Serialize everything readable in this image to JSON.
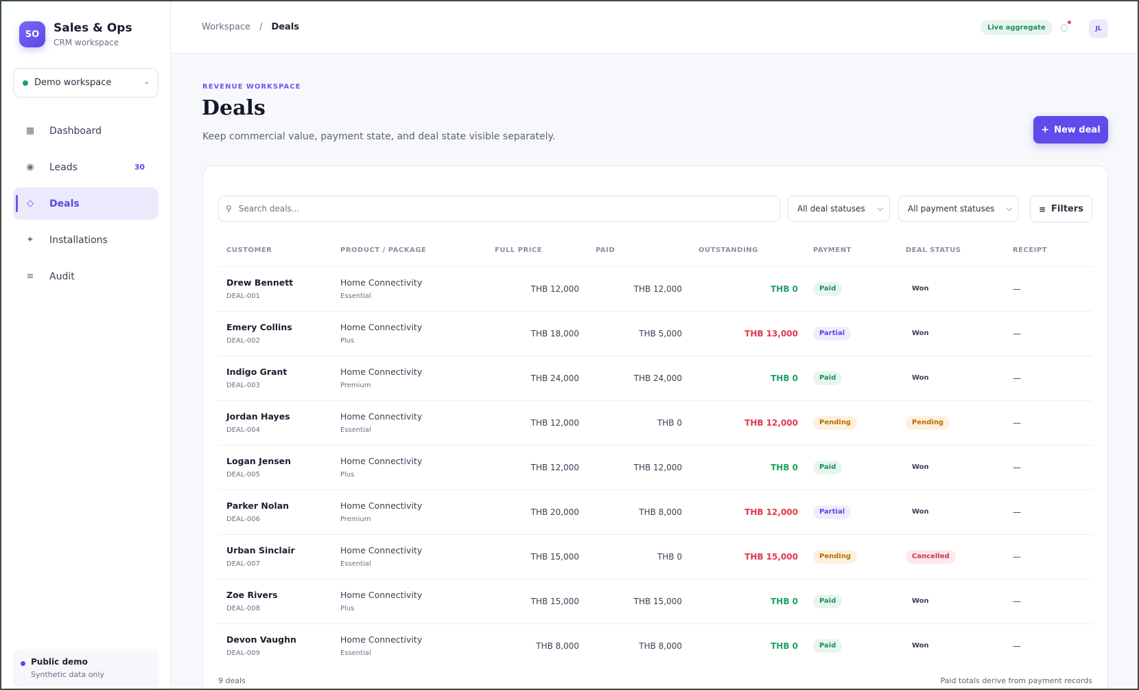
{
  "brand": {
    "initials": "SO",
    "name": "Sales & Ops",
    "subtitle": "CRM workspace"
  },
  "workspace_select": {
    "value": "Demo workspace"
  },
  "nav": [
    {
      "label": "Dashboard",
      "icon": "grid-icon",
      "badge": ""
    },
    {
      "label": "Leads",
      "icon": "target-icon",
      "badge": "30"
    },
    {
      "label": "Deals",
      "icon": "diamond-icon",
      "badge": ""
    },
    {
      "label": "Installations",
      "icon": "bolt-icon",
      "badge": ""
    },
    {
      "label": "Audit",
      "icon": "list-icon",
      "badge": ""
    }
  ],
  "demo_box": {
    "title": "Public demo",
    "subtitle": "Synthetic data only"
  },
  "breadcrumb": {
    "root": "Workspace",
    "separator": "/",
    "current": "Deals"
  },
  "topbar": {
    "live_badge": "Live aggregate",
    "avatar": "JL"
  },
  "header": {
    "eyebrow": "REVENUE WORKSPACE",
    "title": "Deals",
    "description": "Keep commercial value, payment state, and deal state visible separately.",
    "new_deal_label": "New deal"
  },
  "filters": {
    "search_placeholder": "Search deals...",
    "deal_status": "All deal statuses",
    "payment_status": "All payment statuses",
    "filters_label": "Filters"
  },
  "table": {
    "columns": [
      "CUSTOMER",
      "PRODUCT / PACKAGE",
      "FULL PRICE",
      "PAID",
      "OUTSTANDING",
      "PAYMENT",
      "DEAL STATUS",
      "RECEIPT"
    ],
    "rows": [
      {
        "customer": "Drew Bennett",
        "id": "DEAL-001",
        "product": "Home Connectivity",
        "package": "Essential",
        "full": "THB 12,000",
        "paid": "THB 12,000",
        "outstanding": "THB 0",
        "payment": "Paid",
        "status": "Won",
        "receipt": "—"
      },
      {
        "customer": "Emery Collins",
        "id": "DEAL-002",
        "product": "Home Connectivity",
        "package": "Plus",
        "full": "THB 18,000",
        "paid": "THB 5,000",
        "outstanding": "THB 13,000",
        "payment": "Partial",
        "status": "Won",
        "receipt": "—"
      },
      {
        "customer": "Indigo Grant",
        "id": "DEAL-003",
        "product": "Home Connectivity",
        "package": "Premium",
        "full": "THB 24,000",
        "paid": "THB 24,000",
        "outstanding": "THB 0",
        "payment": "Paid",
        "status": "Won",
        "receipt": "—"
      },
      {
        "customer": "Jordan Hayes",
        "id": "DEAL-004",
        "product": "Home Connectivity",
        "package": "Essential",
        "full": "THB 12,000",
        "paid": "THB 0",
        "outstanding": "THB 12,000",
        "payment": "Pending",
        "status": "Pending",
        "receipt": "—"
      },
      {
        "customer": "Logan Jensen",
        "id": "DEAL-005",
        "product": "Home Connectivity",
        "package": "Plus",
        "full": "THB 12,000",
        "paid": "THB 12,000",
        "outstanding": "THB 0",
        "payment": "Paid",
        "status": "Won",
        "receipt": "—"
      },
      {
        "customer": "Parker Nolan",
        "id": "DEAL-006",
        "product": "Home Connectivity",
        "package": "Premium",
        "full": "THB 20,000",
        "paid": "THB 8,000",
        "outstanding": "THB 12,000",
        "payment": "Partial",
        "status": "Won",
        "receipt": "—"
      },
      {
        "customer": "Urban Sinclair",
        "id": "DEAL-007",
        "product": "Home Connectivity",
        "package": "Essential",
        "full": "THB 15,000",
        "paid": "THB 0",
        "outstanding": "THB 15,000",
        "payment": "Pending",
        "status": "Cancelled",
        "receipt": "—"
      },
      {
        "customer": "Zoe Rivers",
        "id": "DEAL-008",
        "product": "Home Connectivity",
        "package": "Plus",
        "full": "THB 15,000",
        "paid": "THB 15,000",
        "outstanding": "THB 0",
        "payment": "Paid",
        "status": "Won",
        "receipt": "—"
      },
      {
        "customer": "Devon Vaughn",
        "id": "DEAL-009",
        "product": "Home Connectivity",
        "package": "Essential",
        "full": "THB 8,000",
        "paid": "THB 8,000",
        "outstanding": "THB 0",
        "payment": "Paid",
        "status": "Won",
        "receipt": "—"
      }
    ]
  },
  "footer": {
    "count": "9 deals",
    "note": "Paid totals derive from payment records"
  },
  "colors": {
    "accent": "#5f4bec",
    "success": "#1f9f62",
    "danger": "#e0384a",
    "warning": "#b86e08"
  }
}
